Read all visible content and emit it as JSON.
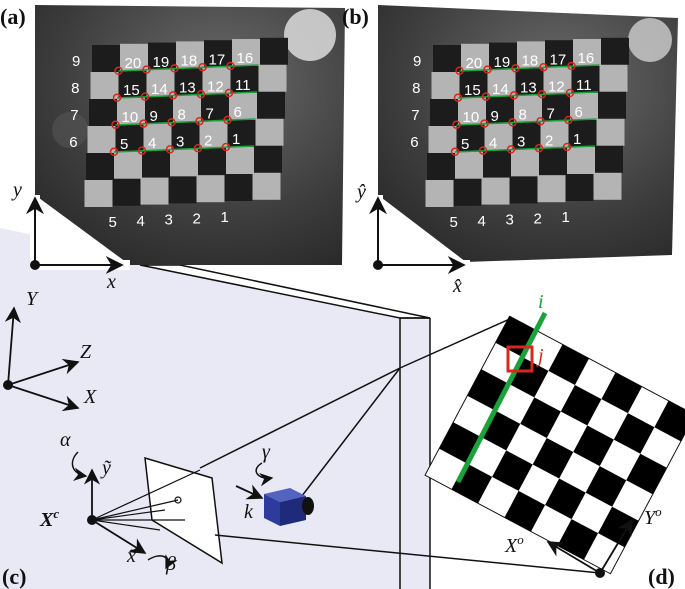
{
  "panels": {
    "a": "(a)",
    "b": "(b)",
    "c": "(c)",
    "d": "(d)"
  },
  "photo_axes": {
    "a": {
      "x": "x",
      "y": "y"
    },
    "b": {
      "x": "x̂",
      "y": "ŷ"
    }
  },
  "row_numbers": [
    "9",
    "8",
    "7",
    "6"
  ],
  "bottom_numbers": [
    "5",
    "4",
    "3",
    "2",
    "1"
  ],
  "grid_numbers": [
    [
      "20",
      "19",
      "18",
      "17",
      "16"
    ],
    [
      "15",
      "14",
      "13",
      "12",
      "11"
    ],
    [
      "10",
      "9",
      "8",
      "7",
      "6"
    ],
    [
      "5",
      "4",
      "3",
      "2",
      "1"
    ]
  ],
  "world_axes": {
    "Y": "Y",
    "Z": "Z",
    "X": "X"
  },
  "camera": {
    "alpha": "α",
    "beta": "β",
    "gamma": "γ",
    "y_tilde": "ỹ",
    "x_tilde": "x̃",
    "k": "k",
    "center_main": "X",
    "center_sup": "c"
  },
  "board": {
    "line_i": "i",
    "cell_j": "j",
    "axis_x_main": "X",
    "axis_x_sup": "o",
    "axis_y_main": "Y",
    "axis_y_sup": "o"
  },
  "colors": {
    "line": "#1aa33a",
    "highlight": "#d9271b",
    "cube": "#2d3b9c",
    "plane": "#e8e8f4"
  }
}
